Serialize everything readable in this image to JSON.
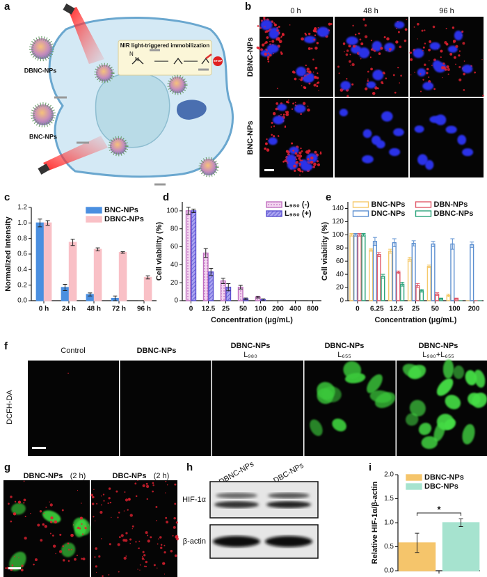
{
  "panel_labels": [
    "a",
    "b",
    "c",
    "d",
    "e",
    "f",
    "g",
    "h",
    "i"
  ],
  "panel_a": {
    "box_title": "NIR light-triggered immobilization",
    "particles": [
      "DBNC-NPs",
      "BNC-NPs"
    ],
    "sign": "STOP",
    "atoms": [
      "N",
      "N"
    ]
  },
  "panel_b": {
    "columns": [
      "0 h",
      "48 h",
      "96 h"
    ],
    "rows": [
      "DBNC-NPs",
      "BNC-NPs"
    ]
  },
  "panel_f": {
    "columns": [
      {
        "title": "Control"
      },
      {
        "title": "DBNC-NPs"
      },
      {
        "title": "DBNC-NPs",
        "subtitle": "L₉₈₀"
      },
      {
        "title": "DBNC-NPs",
        "subtitle": "L₆₅₅"
      },
      {
        "title": "DBNC-NPs",
        "subtitle": "L₉₈₀+L₆₅₅"
      }
    ],
    "row": "DCFH-DA"
  },
  "panel_g": {
    "columns": [
      {
        "title": "DBNC-NPs",
        "time": "(2 h)"
      },
      {
        "title": "DBC-NPs",
        "time": "(2 h)"
      }
    ]
  },
  "panel_h": {
    "lanes": [
      "DBNC-NPs",
      "DBC-NPs"
    ],
    "rows": [
      "HIF-1α",
      "β-actin"
    ]
  },
  "chart_data": [
    {
      "type": "bar",
      "ylabel": "Normalized intensity",
      "categories": [
        "0 h",
        "24 h",
        "48 h",
        "72 h",
        "96 h"
      ],
      "series": [
        {
          "name": "BNC-NPs",
          "color": "#4a8fe0",
          "values": [
            1.0,
            0.17,
            0.08,
            0.03,
            0
          ],
          "errors": [
            0.05,
            0.04,
            0.02,
            0.03,
            0
          ]
        },
        {
          "name": "DBNC-NPs",
          "color": "#f9c0c6",
          "values": [
            1.0,
            0.75,
            0.66,
            0.62,
            0.3
          ],
          "errors": [
            0.03,
            0.04,
            0.02,
            0.01,
            0.02
          ]
        }
      ],
      "ylim": [
        0,
        1.2
      ],
      "yticks": [
        {
          "value": 0,
          "label": "0.0"
        },
        0.2,
        0.4,
        0.6,
        0.8,
        {
          "value": 1,
          "label": "1.0"
        },
        1.2
      ],
      "legend": "upper right"
    },
    {
      "type": "bar",
      "ylabel": "Cell viability (%)",
      "xlabel": "Concentration (μg/mL)",
      "categories": [
        "0",
        "12.5",
        "25",
        "50",
        "100",
        "200",
        "400",
        "800"
      ],
      "series": [
        {
          "name": "L₉₈₀ (-)",
          "color": "#c070c0",
          "pattern": "dots",
          "values": [
            100,
            53,
            22,
            15,
            4,
            0,
            0,
            0
          ],
          "errors": [
            4,
            5,
            3,
            2,
            1,
            0,
            0,
            0
          ]
        },
        {
          "name": "L₉₈₀ (+)",
          "color": "#5a50d0",
          "pattern": "hatch",
          "values": [
            100,
            32,
            15,
            2,
            1,
            0,
            0,
            0
          ],
          "errors": [
            2,
            4,
            4,
            1,
            1,
            0,
            0,
            0
          ]
        }
      ],
      "ylim": [
        0,
        110
      ],
      "yticks": [
        0,
        20,
        40,
        60,
        80,
        100
      ],
      "legend": "upper right"
    },
    {
      "type": "bar",
      "ylabel": "Cell viability (%)",
      "xlabel": "Concentration (μg/mL)",
      "categories": [
        "0",
        "6.25",
        "12.5",
        "25",
        "50",
        "100",
        "200"
      ],
      "series": [
        {
          "name": "BNC-NPs",
          "color": "#f5c96a",
          "values": [
            100,
            77,
            75,
            63,
            52,
            8,
            0
          ],
          "errors": [
            2,
            2,
            3,
            3,
            2,
            2,
            0
          ]
        },
        {
          "name": "DNC-NPs",
          "color": "#5b8fd0",
          "values": [
            100,
            90,
            88,
            87,
            86,
            86,
            85
          ],
          "errors": [
            2,
            6,
            6,
            4,
            4,
            8,
            4
          ]
        },
        {
          "name": "DBN-NPs",
          "color": "#e05a6a",
          "values": [
            100,
            70,
            43,
            23,
            10,
            3,
            0
          ],
          "errors": [
            2,
            3,
            2,
            3,
            2,
            1,
            0
          ]
        },
        {
          "name": "DBNC-NPs",
          "color": "#2aa37a",
          "values": [
            100,
            37,
            25,
            15,
            3,
            0,
            0
          ],
          "errors": [
            2,
            3,
            3,
            2,
            1,
            0,
            0
          ]
        }
      ],
      "ylim": [
        0,
        150
      ],
      "yticks": [
        0,
        20,
        40,
        60,
        80,
        100,
        120,
        140
      ],
      "legend": "upper center"
    },
    {
      "type": "bar",
      "ylabel": "Relative HIF-1α/β-actin",
      "annotation": "*",
      "categories": [
        null
      ],
      "series": [
        {
          "name": "DBNC-NPs",
          "color": "#f5c56b",
          "values": [
            0.58
          ],
          "errors": [
            0.2
          ]
        },
        {
          "name": "DBC-NPs",
          "color": "#a6e3cf",
          "values": [
            1.0
          ],
          "errors": [
            0.08
          ]
        }
      ],
      "ylim": [
        0,
        2
      ],
      "yticks": [
        {
          "value": 0,
          "label": "0.0"
        },
        0.5,
        {
          "value": 1,
          "label": "1.0"
        },
        1.5,
        {
          "value": 2,
          "label": "2.0"
        }
      ],
      "legend": "upper left"
    }
  ]
}
